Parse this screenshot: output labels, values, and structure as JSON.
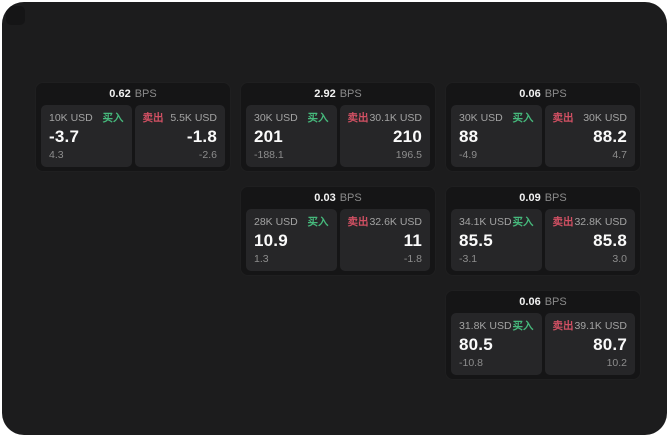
{
  "app": {
    "background": "#1c1c1d",
    "accent_green": "#46b97c",
    "accent_red": "#d15063",
    "bps_unit_label": "BPS",
    "buy_side_label": "买入",
    "sell_side_label": "卖出"
  },
  "cards": [
    {
      "bps": "0.62",
      "row": 1,
      "col": 1,
      "buy": {
        "size": "10K USD",
        "price": "-3.7",
        "change": "4.3"
      },
      "sell": {
        "size": "5.5K USD",
        "price": "-1.8",
        "change": "-2.6"
      }
    },
    {
      "bps": "2.92",
      "row": 1,
      "col": 2,
      "buy": {
        "size": "30K USD",
        "price": "201",
        "change": "-188.1"
      },
      "sell": {
        "size": "30.1K USD",
        "price": "210",
        "change": "196.5"
      }
    },
    {
      "bps": "0.06",
      "row": 1,
      "col": 3,
      "buy": {
        "size": "30K USD",
        "price": "88",
        "change": "-4.9"
      },
      "sell": {
        "size": "30K USD",
        "price": "88.2",
        "change": "4.7"
      }
    },
    {
      "bps": "0.03",
      "row": 2,
      "col": 2,
      "buy": {
        "size": "28K USD",
        "price": "10.9",
        "change": "1.3"
      },
      "sell": {
        "size": "32.6K USD",
        "price": "11",
        "change": "-1.8"
      }
    },
    {
      "bps": "0.09",
      "row": 2,
      "col": 3,
      "buy": {
        "size": "34.1K USD",
        "price": "85.5",
        "change": "-3.1"
      },
      "sell": {
        "size": "32.8K USD",
        "price": "85.8",
        "change": "3.0"
      }
    },
    {
      "bps": "0.06",
      "row": 3,
      "col": 3,
      "buy": {
        "size": "31.8K USD",
        "price": "80.5",
        "change": "-10.8"
      },
      "sell": {
        "size": "39.1K USD",
        "price": "80.7",
        "change": "10.2"
      }
    }
  ]
}
